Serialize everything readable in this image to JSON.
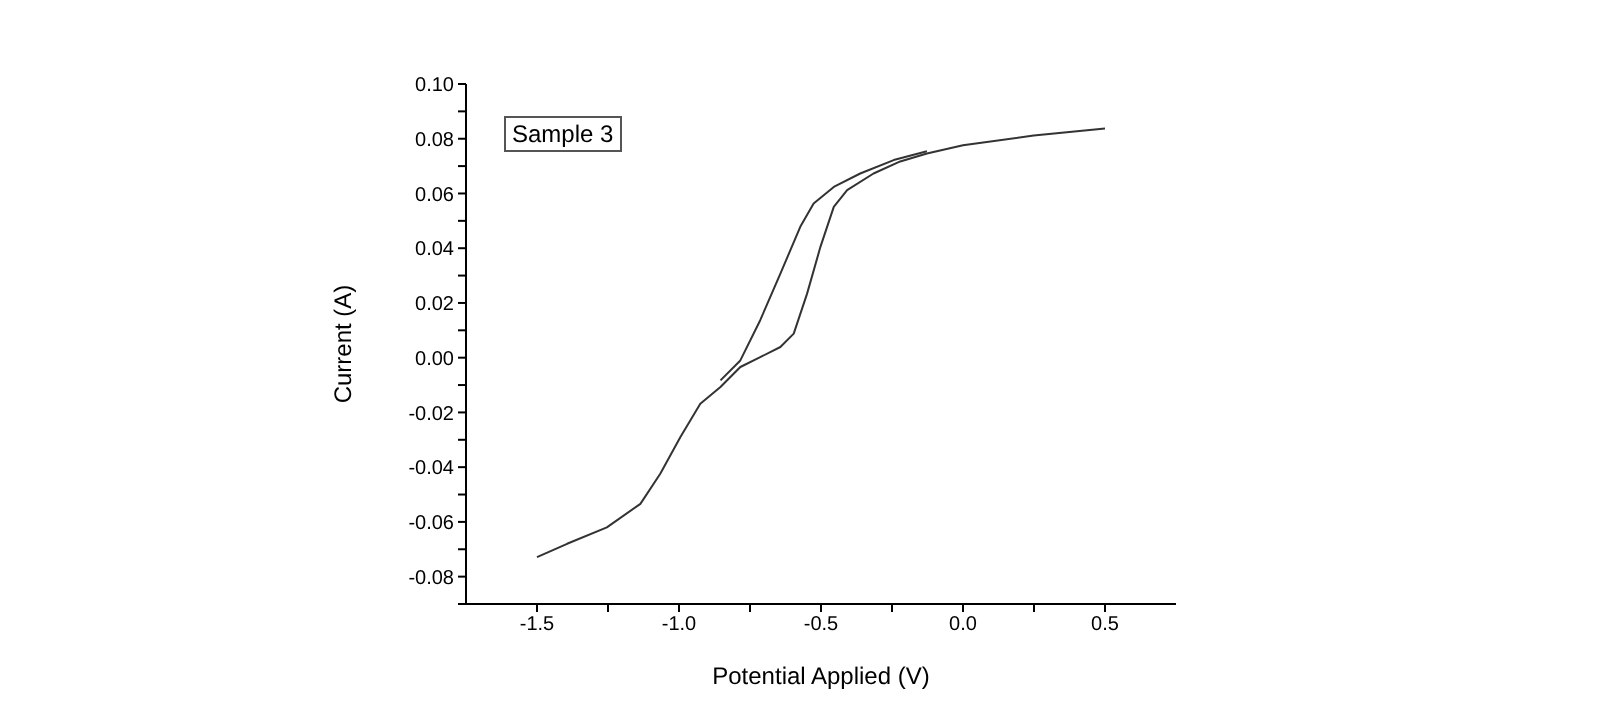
{
  "chart_data": {
    "type": "line",
    "xlabel": "Potential Applied (V)",
    "ylabel": "Current (A)",
    "annotations": [
      "Sample 3"
    ],
    "series": [
      {
        "color": "#333333",
        "x": [
          -1.5,
          -1.394,
          -1.254,
          -1.136,
          -1.066,
          -0.995,
          -0.925,
          -0.854,
          -0.784,
          -0.714,
          -0.643,
          -0.596,
          -0.549,
          -0.502,
          -0.455,
          -0.408,
          -0.315,
          -0.221,
          -0.127,
          0.0,
          0.249,
          0.5
        ],
        "values": [
          -0.0729,
          -0.068,
          -0.062,
          -0.0534,
          -0.0424,
          -0.029,
          -0.0168,
          -0.0107,
          -0.0034,
          0.0002,
          0.0039,
          0.0088,
          0.0234,
          0.0405,
          0.0551,
          0.0612,
          0.0673,
          0.0717,
          0.0746,
          0.0776,
          0.0812,
          0.0837
        ]
      },
      {
        "color": "#333333",
        "x": [
          -0.854,
          -0.784,
          -0.714,
          -0.643,
          -0.573,
          -0.526,
          -0.455,
          -0.362,
          -0.244,
          -0.127
        ],
        "values": [
          -0.0083,
          -0.001,
          0.0137,
          0.0307,
          0.0478,
          0.0563,
          0.0624,
          0.0673,
          0.0722,
          0.0754
        ]
      }
    ],
    "xlim": [
      -1.75,
      0.75
    ],
    "xticks": [
      -1.5,
      {
        "value": -1.25,
        "label": null
      },
      "-1.0",
      {
        "value": -0.75,
        "label": null
      },
      -0.5,
      {
        "value": -0.25,
        "label": null
      },
      "0.0",
      {
        "value": 0.25,
        "label": null
      },
      0.5
    ],
    "ylim": [
      -0.09,
      0.1
    ],
    "yticks": [
      {
        "value": -0.09,
        "label": null
      },
      {
        "value": -0.08,
        "label": "-0.08"
      },
      {
        "value": -0.07,
        "label": null
      },
      {
        "value": -0.06,
        "label": "-0.06"
      },
      {
        "value": -0.05,
        "label": null
      },
      {
        "value": -0.04,
        "label": "-0.04"
      },
      {
        "value": -0.03,
        "label": null
      },
      {
        "value": -0.02,
        "label": "-0.02"
      },
      {
        "value": -0.01,
        "label": null
      },
      {
        "value": 0,
        "label": "0.00"
      },
      {
        "value": 0.01,
        "label": null
      },
      {
        "value": 0.02,
        "label": "0.02"
      },
      {
        "value": 0.03,
        "label": null
      },
      {
        "value": 0.04,
        "label": "0.04"
      },
      {
        "value": 0.05,
        "label": null
      },
      {
        "value": 0.06,
        "label": "0.06"
      },
      {
        "value": 0.07,
        "label": null
      },
      {
        "value": 0.08,
        "label": "0.08"
      },
      {
        "value": 0.09,
        "label": null
      },
      {
        "value": 0.1,
        "label": "0.10"
      }
    ],
    "grid": false,
    "legend": false,
    "marker": "none",
    "line_style": "solid"
  }
}
